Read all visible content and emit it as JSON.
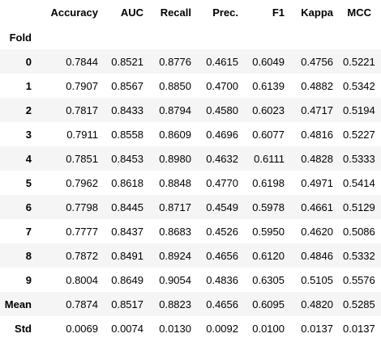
{
  "table": {
    "columns": [
      "Accuracy",
      "AUC",
      "Recall",
      "Prec.",
      "F1",
      "Kappa",
      "MCC"
    ],
    "index_name": "Fold",
    "rows": [
      {
        "label": "0",
        "values": [
          "0.7844",
          "0.8521",
          "0.8776",
          "0.4615",
          "0.6049",
          "0.4756",
          "0.5221"
        ]
      },
      {
        "label": "1",
        "values": [
          "0.7907",
          "0.8567",
          "0.8850",
          "0.4700",
          "0.6139",
          "0.4882",
          "0.5342"
        ]
      },
      {
        "label": "2",
        "values": [
          "0.7817",
          "0.8433",
          "0.8794",
          "0.4580",
          "0.6023",
          "0.4717",
          "0.5194"
        ]
      },
      {
        "label": "3",
        "values": [
          "0.7911",
          "0.8558",
          "0.8609",
          "0.4696",
          "0.6077",
          "0.4816",
          "0.5227"
        ]
      },
      {
        "label": "4",
        "values": [
          "0.7851",
          "0.8453",
          "0.8980",
          "0.4632",
          "0.6111",
          "0.4828",
          "0.5333"
        ]
      },
      {
        "label": "5",
        "values": [
          "0.7962",
          "0.8618",
          "0.8848",
          "0.4770",
          "0.6198",
          "0.4971",
          "0.5414"
        ]
      },
      {
        "label": "6",
        "values": [
          "0.7798",
          "0.8445",
          "0.8717",
          "0.4549",
          "0.5978",
          "0.4661",
          "0.5129"
        ]
      },
      {
        "label": "7",
        "values": [
          "0.7777",
          "0.8437",
          "0.8683",
          "0.4526",
          "0.5950",
          "0.4620",
          "0.5086"
        ]
      },
      {
        "label": "8",
        "values": [
          "0.7872",
          "0.8491",
          "0.8924",
          "0.4656",
          "0.6120",
          "0.4846",
          "0.5332"
        ]
      },
      {
        "label": "9",
        "values": [
          "0.8004",
          "0.8649",
          "0.9054",
          "0.4836",
          "0.6305",
          "0.5105",
          "0.5576"
        ]
      },
      {
        "label": "Mean",
        "values": [
          "0.7874",
          "0.8517",
          "0.8823",
          "0.4656",
          "0.6095",
          "0.4820",
          "0.5285"
        ]
      },
      {
        "label": "Std",
        "values": [
          "0.0069",
          "0.0074",
          "0.0130",
          "0.0092",
          "0.0100",
          "0.0137",
          "0.0137"
        ]
      }
    ]
  },
  "colors": {
    "stripe": "#f5f5f5",
    "background": "#ffffff",
    "text": "#000000"
  }
}
